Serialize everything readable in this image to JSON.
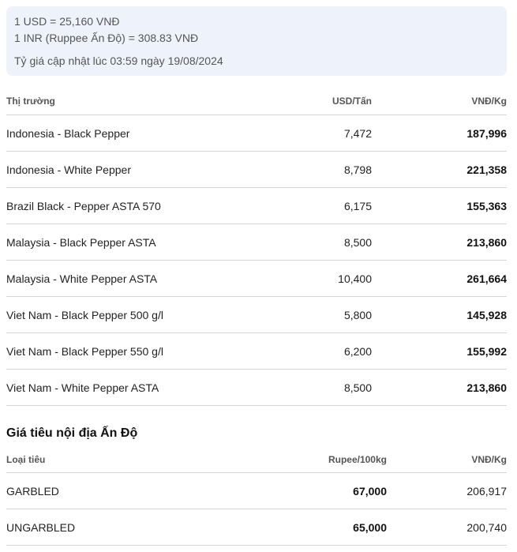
{
  "exchange": {
    "usd_line": "1 USD = 25,160 VNĐ",
    "inr_line": "1 INR (Ruppee Ấn Độ) = 308.83 VNĐ",
    "updated": "Tỷ giá cập nhật lúc 03:59 ngày 19/08/2024"
  },
  "world_table": {
    "headers": [
      "Thị trường",
      "USD/Tấn",
      "VNĐ/Kg"
    ],
    "rows": [
      {
        "market": "Indonesia - Black Pepper",
        "usd": "7,472",
        "vnd": "187,996"
      },
      {
        "market": "Indonesia - White Pepper",
        "usd": "8,798",
        "vnd": "221,358"
      },
      {
        "market": "Brazil Black - Pepper ASTA 570",
        "usd": "6,175",
        "vnd": "155,363"
      },
      {
        "market": "Malaysia - Black Pepper ASTA",
        "usd": "8,500",
        "vnd": "213,860"
      },
      {
        "market": "Malaysia - White Pepper ASTA",
        "usd": "10,400",
        "vnd": "261,664"
      },
      {
        "market": "Viet Nam - Black Pepper 500 g/l",
        "usd": "5,800",
        "vnd": "145,928"
      },
      {
        "market": "Viet Nam - Black Pepper 550 g/l",
        "usd": "6,200",
        "vnd": "155,992"
      },
      {
        "market": "Viet Nam - White Pepper ASTA",
        "usd": "8,500",
        "vnd": "213,860"
      }
    ]
  },
  "india_section": {
    "title": "Giá tiêu nội địa Ấn Độ",
    "headers": [
      "Loại tiêu",
      "Rupee/100kg",
      "VNĐ/Kg"
    ],
    "rows": [
      {
        "type": "GARBLED",
        "rupee": "67,000",
        "vnd": "206,917"
      },
      {
        "type": "UNGARBLED",
        "rupee": "65,000",
        "vnd": "200,740"
      }
    ]
  }
}
